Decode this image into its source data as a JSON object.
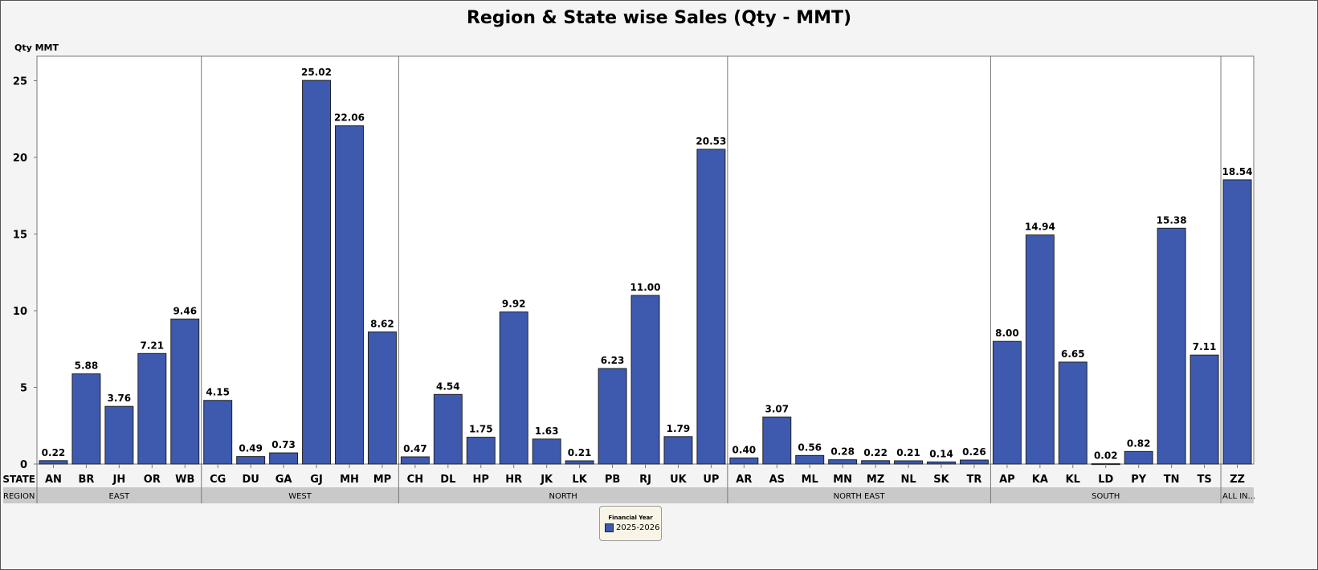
{
  "chart_data": {
    "type": "bar",
    "title": "Region & State wise Sales (Qty - MMT)",
    "ylabel": "Qty MMT",
    "xlabel_state": "STATE",
    "xlabel_region": "REGION",
    "ylim": [
      0,
      26.6
    ],
    "yticks": [
      0,
      5,
      10,
      15,
      20,
      25
    ],
    "grid": false,
    "bar_color": "#3d5aaf",
    "legend": {
      "title": "Financial Year",
      "placement": "bottom-center",
      "entries": [
        "2025-2026"
      ]
    },
    "regions": [
      {
        "name": "EAST",
        "states": [
          "AN",
          "BR",
          "JH",
          "OR",
          "WB"
        ],
        "values": [
          0.22,
          5.88,
          3.76,
          7.21,
          9.46
        ]
      },
      {
        "name": "WEST",
        "states": [
          "CG",
          "DU",
          "GA",
          "GJ",
          "MH",
          "MP"
        ],
        "values": [
          4.15,
          0.49,
          0.73,
          25.02,
          22.06,
          8.62
        ]
      },
      {
        "name": "NORTH",
        "states": [
          "CH",
          "DL",
          "HP",
          "HR",
          "JK",
          "LK",
          "PB",
          "RJ",
          "UK",
          "UP"
        ],
        "values": [
          0.47,
          4.54,
          1.75,
          9.92,
          1.63,
          0.21,
          6.23,
          11.0,
          1.79,
          20.53
        ]
      },
      {
        "name": "NORTH EAST",
        "states": [
          "AR",
          "AS",
          "ML",
          "MN",
          "MZ",
          "NL",
          "SK",
          "TR"
        ],
        "values": [
          0.4,
          3.07,
          0.56,
          0.28,
          0.22,
          0.21,
          0.14,
          0.26
        ]
      },
      {
        "name": "SOUTH",
        "states": [
          "AP",
          "KA",
          "KL",
          "LD",
          "PY",
          "TN",
          "TS"
        ],
        "values": [
          8.0,
          14.94,
          6.65,
          0.02,
          0.82,
          15.38,
          7.11
        ]
      },
      {
        "name": "ALL IN...",
        "states": [
          "ZZ"
        ],
        "values": [
          18.54
        ]
      }
    ]
  }
}
